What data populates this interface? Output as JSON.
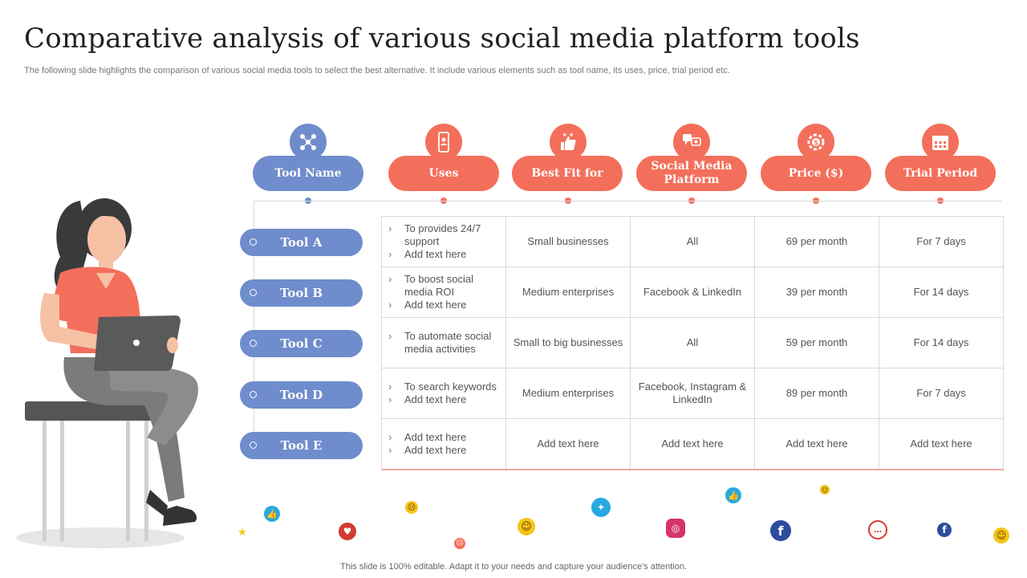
{
  "title": "Comparative analysis of various social media platform tools",
  "subtitle": "The following slide highlights the comparison of various social media tools to select the best alternative. It include various elements such as tool name, its uses, price, trial period etc.",
  "footer": "This slide is 100% editable. Adapt it to your needs and capture your audience's attention.",
  "headers": [
    {
      "label": "Tool Name",
      "icon": "people-network-icon",
      "color": "#6f8ccc"
    },
    {
      "label": "Uses",
      "icon": "mobile-user-icon",
      "color": "#f36f5b"
    },
    {
      "label": "Best Fit for",
      "icon": "thumbs-up-stars-icon",
      "color": "#f36f5b"
    },
    {
      "label": "Social Media Platform",
      "icon": "social-chat-icon",
      "color": "#f36f5b"
    },
    {
      "label": "Price ($)",
      "icon": "gear-dollar-icon",
      "color": "#f36f5b"
    },
    {
      "label": "Trial Period",
      "icon": "calendar-icon",
      "color": "#f36f5b"
    }
  ],
  "tools": [
    "Tool A",
    "Tool B",
    "Tool C",
    "Tool D",
    "Tool E"
  ],
  "rows": [
    {
      "uses": [
        "To provides 24/7 support",
        "Add text here"
      ],
      "best_fit": "Small businesses",
      "platform": "All",
      "price": "69 per month",
      "trial": "For 7 days"
    },
    {
      "uses": [
        "To boost social media ROI",
        "Add text here"
      ],
      "best_fit": "Medium enterprises",
      "platform": "Facebook & LinkedIn",
      "price": "39 per month",
      "trial": "For 14 days"
    },
    {
      "uses": [
        "To automate social media activities"
      ],
      "best_fit": "Small to big businesses",
      "platform": "All",
      "price": "59 per month",
      "trial": "For 14 days"
    },
    {
      "uses": [
        "To search keywords",
        "Add text here"
      ],
      "best_fit": "Medium enterprises",
      "platform": "Facebook, Instagram & LinkedIn",
      "price": "89 per month",
      "trial": "For 7 days"
    },
    {
      "uses": [
        "Add text here",
        "Add text here"
      ],
      "best_fit": "Add text here",
      "platform": "Add text here",
      "price": "Add text here",
      "trial": "Add text here"
    }
  ],
  "colors": {
    "blue": "#6f8ccc",
    "coral": "#f36f5b",
    "grid": "#d9d9d9"
  },
  "social_icons": [
    "like-icon",
    "heart-icon",
    "angry-emoji-icon",
    "laughing-emoji-icon",
    "twitter-icon",
    "instagram-icon",
    "facebook-icon",
    "chat-icon",
    "star-icon"
  ]
}
